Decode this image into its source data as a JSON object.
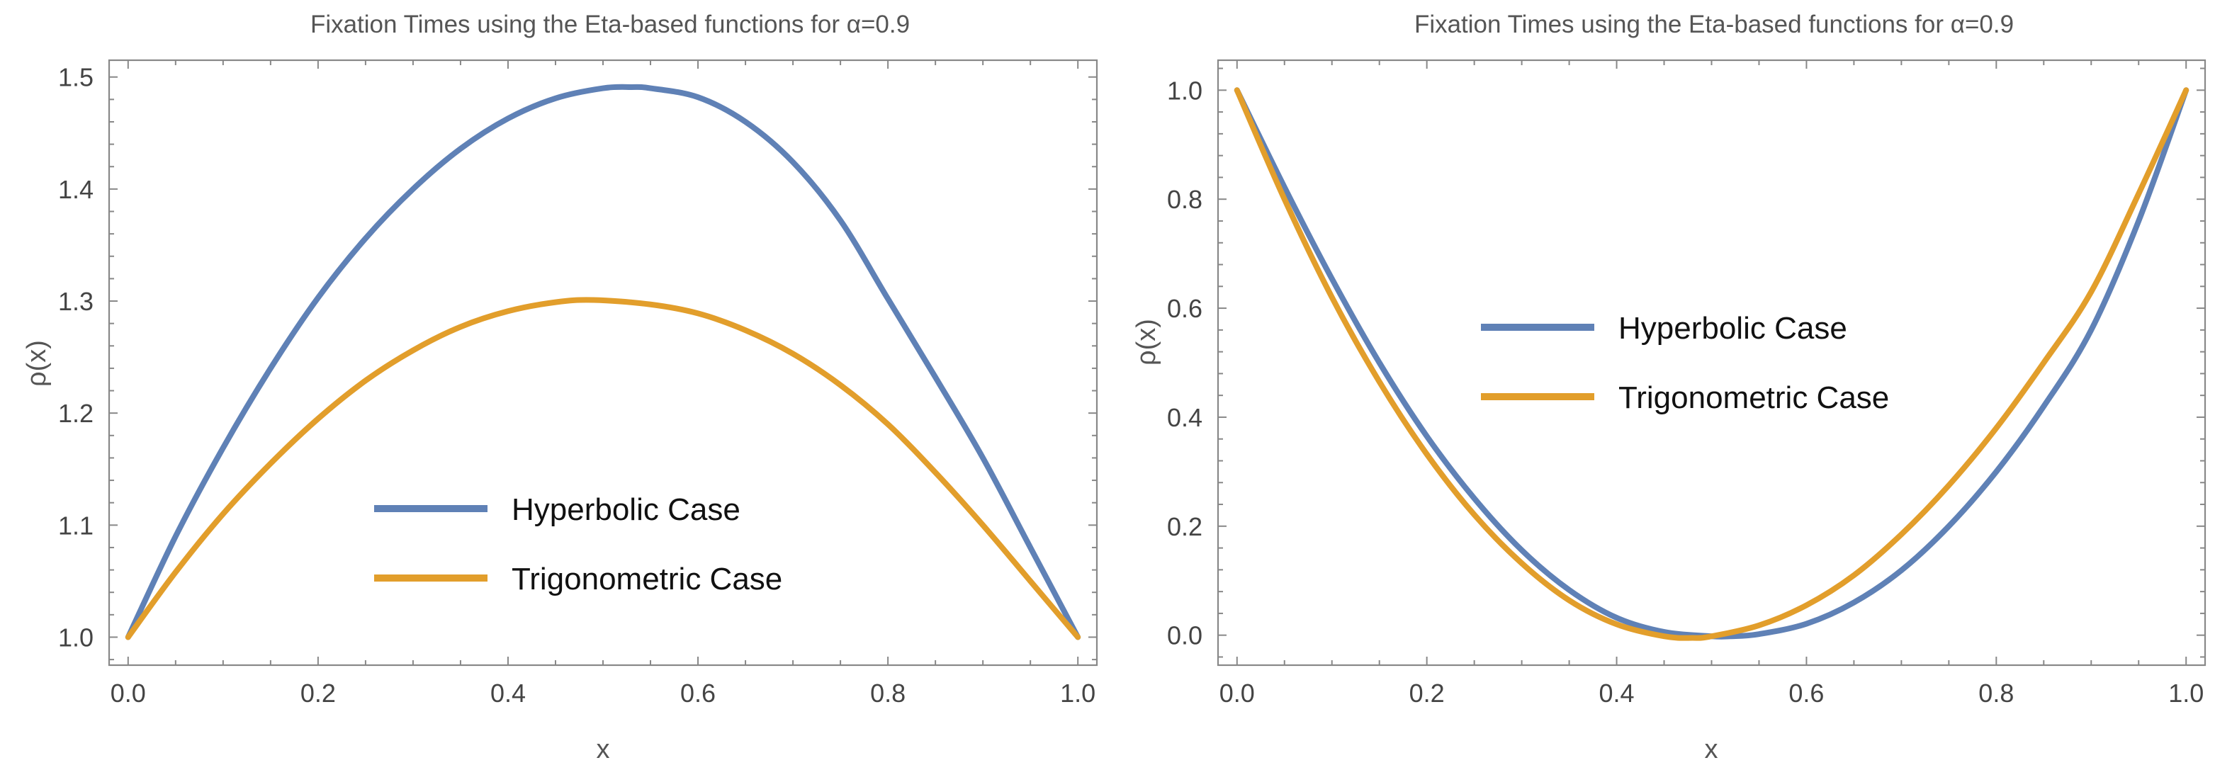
{
  "chart_data": [
    {
      "type": "line",
      "title": "Fixation Times using the  Eta-based functions for α=0.9",
      "xlabel": "x",
      "ylabel": "ρ(x)",
      "xlim": [
        -0.02,
        1.02
      ],
      "ylim": [
        0.975,
        1.515
      ],
      "xticks": [
        0.0,
        0.2,
        0.4,
        0.6,
        0.8,
        1.0
      ],
      "xtick_labels": [
        "0.0",
        "0.2",
        "0.4",
        "0.6",
        "0.8",
        "1.0"
      ],
      "yticks": [
        1.0,
        1.1,
        1.2,
        1.3,
        1.4,
        1.5
      ],
      "ytick_labels": [
        "1.0",
        "1.1",
        "1.2",
        "1.3",
        "1.4",
        "1.5"
      ],
      "legend_position": "bottom-center",
      "series": [
        {
          "name": "Hyperbolic Case",
          "color": "#5f81b6",
          "x": [
            0,
            0.05,
            0.1,
            0.15,
            0.2,
            0.25,
            0.3,
            0.35,
            0.4,
            0.45,
            0.5,
            0.53,
            0.55,
            0.6,
            0.65,
            0.7,
            0.75,
            0.8,
            0.85,
            0.9,
            0.95,
            1.0
          ],
          "y": [
            1.0,
            1.09,
            1.169,
            1.24,
            1.303,
            1.356,
            1.4,
            1.436,
            1.463,
            1.481,
            1.49,
            1.491,
            1.49,
            1.482,
            1.46,
            1.424,
            1.372,
            1.302,
            1.232,
            1.16,
            1.08,
            1.0
          ]
        },
        {
          "name": "Trigonometric Case",
          "color": "#e29e2b",
          "x": [
            0,
            0.05,
            0.1,
            0.15,
            0.2,
            0.25,
            0.3,
            0.35,
            0.4,
            0.45,
            0.49,
            0.55,
            0.6,
            0.65,
            0.7,
            0.75,
            0.8,
            0.85,
            0.9,
            0.95,
            1.0
          ],
          "y": [
            1.0,
            1.058,
            1.11,
            1.155,
            1.195,
            1.229,
            1.256,
            1.277,
            1.291,
            1.299,
            1.301,
            1.297,
            1.289,
            1.274,
            1.253,
            1.225,
            1.19,
            1.147,
            1.1,
            1.05,
            1.0
          ]
        }
      ]
    },
    {
      "type": "line",
      "title": "Fixation Times using the  Eta-based functions for α=0.9",
      "xlabel": "x",
      "ylabel": "ρ(x)",
      "xlim": [
        -0.02,
        1.02
      ],
      "ylim": [
        -0.055,
        1.055
      ],
      "xticks": [
        0.0,
        0.2,
        0.4,
        0.6,
        0.8,
        1.0
      ],
      "xtick_labels": [
        "0.0",
        "0.2",
        "0.4",
        "0.6",
        "0.8",
        "1.0"
      ],
      "yticks": [
        0.0,
        0.2,
        0.4,
        0.6,
        0.8,
        1.0
      ],
      "ytick_labels": [
        "0.0",
        "0.2",
        "0.4",
        "0.6",
        "0.8",
        "1.0"
      ],
      "legend_position": "center",
      "series": [
        {
          "name": "Hyperbolic Case",
          "color": "#5f81b6",
          "x": [
            0,
            0.05,
            0.1,
            0.15,
            0.2,
            0.25,
            0.3,
            0.35,
            0.4,
            0.45,
            0.5,
            0.52,
            0.55,
            0.6,
            0.65,
            0.7,
            0.75,
            0.8,
            0.85,
            0.9,
            0.95,
            1.0
          ],
          "y": [
            1.0,
            0.822,
            0.654,
            0.5,
            0.365,
            0.251,
            0.156,
            0.083,
            0.032,
            0.006,
            -0.002,
            -0.002,
            0.002,
            0.021,
            0.06,
            0.119,
            0.2,
            0.3,
            0.42,
            0.56,
            0.76,
            1.0
          ]
        },
        {
          "name": "Trigonometric Case",
          "color": "#e29e2b",
          "x": [
            0,
            0.05,
            0.1,
            0.15,
            0.2,
            0.25,
            0.3,
            0.35,
            0.4,
            0.45,
            0.48,
            0.5,
            0.55,
            0.6,
            0.65,
            0.7,
            0.75,
            0.8,
            0.85,
            0.9,
            0.95,
            1.0
          ],
          "y": [
            1.0,
            0.8,
            0.62,
            0.465,
            0.332,
            0.221,
            0.132,
            0.064,
            0.02,
            -0.002,
            -0.005,
            -0.002,
            0.018,
            0.055,
            0.11,
            0.185,
            0.275,
            0.38,
            0.5,
            0.63,
            0.81,
            1.0
          ]
        }
      ]
    }
  ]
}
